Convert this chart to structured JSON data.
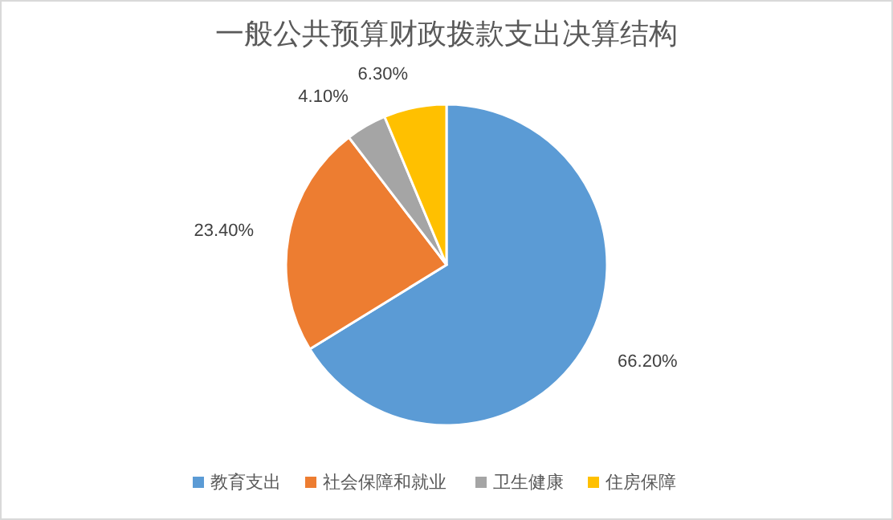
{
  "chart_data": {
    "type": "pie",
    "title": "一般公共预算财政拨款支出决算结构",
    "categories": [
      "教育支出",
      "社会保障和就业",
      "卫生健康",
      "住房保障"
    ],
    "values": [
      66.2,
      23.4,
      4.1,
      6.3
    ],
    "colors": [
      "#5b9bd5",
      "#ed7d31",
      "#a5a5a5",
      "#ffc000"
    ],
    "value_labels": [
      "66.20%",
      "23.40%",
      "4.10%",
      "6.30%"
    ],
    "legend": "bottom"
  }
}
